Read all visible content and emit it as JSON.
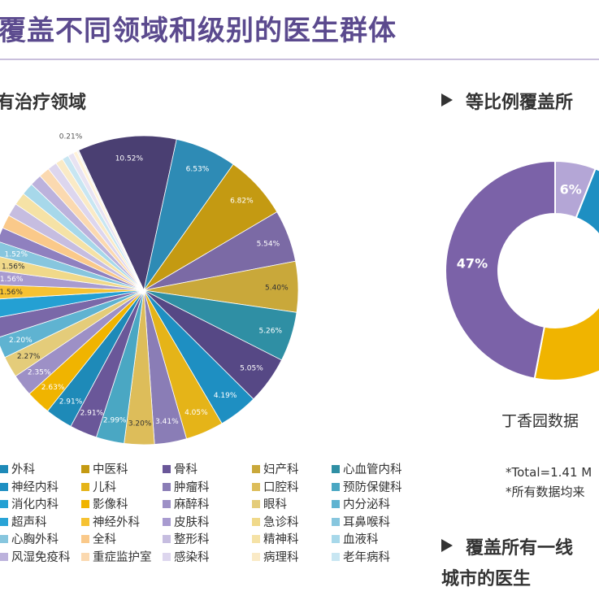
{
  "header": {
    "title": "覆盖不同领域和级别的医生群体"
  },
  "sections": {
    "left": "有治疗领域",
    "right": "等比例覆盖所",
    "bottom_line1": "覆盖所有一线",
    "bottom_line2": "城市的医生"
  },
  "source_text": "丁香园数据",
  "notes": [
    "*Total=1.41 M",
    "*所有数据均来"
  ],
  "colors": {
    "title": "#5b4a8e"
  },
  "chart_data": [
    {
      "type": "pie",
      "title": "",
      "slices": [
        {
          "name": "",
          "value": 10.52,
          "label": "10.52%",
          "color": "#4a3f72"
        },
        {
          "name": "",
          "value": 6.53,
          "label": "6.53%",
          "color": "#2e8bb5"
        },
        {
          "name": "",
          "value": 6.82,
          "label": "6.82%",
          "color": "#c49a12"
        },
        {
          "name": "",
          "value": 5.54,
          "label": "5.54%",
          "color": "#7b6aa5"
        },
        {
          "name": "",
          "value": 5.4,
          "label": "5.40%",
          "color": "#c9a83a"
        },
        {
          "name": "",
          "value": 5.26,
          "label": "5.26%",
          "color": "#2f8fa4"
        },
        {
          "name": "",
          "value": 5.05,
          "label": "5.05%",
          "color": "#564885"
        },
        {
          "name": "",
          "value": 4.19,
          "label": "4.19%",
          "color": "#1e8fc2"
        },
        {
          "name": "",
          "value": 4.05,
          "label": "4.05%",
          "color": "#e5b418"
        },
        {
          "name": "",
          "value": 3.41,
          "label": "3.41%",
          "color": "#8a7db6"
        },
        {
          "name": "",
          "value": 3.2,
          "label": "3.20%",
          "color": "#ddbd5a"
        },
        {
          "name": "",
          "value": 2.99,
          "label": "2.99%",
          "color": "#4aa7c3"
        },
        {
          "name": "",
          "value": 2.91,
          "label": "2.91%",
          "color": "#6a5799"
        },
        {
          "name": "",
          "value": 2.91,
          "label": "2.91%",
          "color": "#1e8ab8"
        },
        {
          "name": "",
          "value": 2.63,
          "label": "2.63%",
          "color": "#f0b400"
        },
        {
          "name": "",
          "value": 2.35,
          "label": "2.35%",
          "color": "#9d90c6"
        },
        {
          "name": "",
          "value": 2.27,
          "label": "2.27%",
          "color": "#e4cc7a"
        },
        {
          "name": "",
          "value": 2.2,
          "label": "2.20%",
          "color": "#5fb3d1"
        },
        {
          "name": "",
          "value": 2.1,
          "label": "",
          "color": "#7a68a8"
        },
        {
          "name": "",
          "value": 2.0,
          "label": "",
          "color": "#24a0d3"
        },
        {
          "name": "",
          "value": 1.56,
          "label": "1.56%",
          "color": "#f6c232"
        },
        {
          "name": "",
          "value": 1.56,
          "label": "1.56%",
          "color": "#a89bd0"
        },
        {
          "name": "",
          "value": 1.56,
          "label": "1.56%",
          "color": "#f0d98a"
        },
        {
          "name": "",
          "value": 1.52,
          "label": "1.52%",
          "color": "#87c6de"
        },
        {
          "name": "",
          "value": 1.5,
          "label": "",
          "color": "#8f80bf"
        },
        {
          "name": "",
          "value": 1.45,
          "label": "",
          "color": "#fac98a"
        },
        {
          "name": "",
          "value": 1.4,
          "label": "",
          "color": "#c6bde0"
        },
        {
          "name": "",
          "value": 1.35,
          "label": "",
          "color": "#f5e2a6"
        },
        {
          "name": "",
          "value": 1.3,
          "label": "",
          "color": "#a7d8ea"
        },
        {
          "name": "",
          "value": 1.25,
          "label": "",
          "color": "#bcb2dc"
        },
        {
          "name": "",
          "value": 1.15,
          "label": "",
          "color": "#fbd9b0"
        },
        {
          "name": "",
          "value": 1.0,
          "label": "",
          "color": "#ddd6ee"
        },
        {
          "name": "",
          "value": 0.8,
          "label": "",
          "color": "#faeac6"
        },
        {
          "name": "",
          "value": 0.7,
          "label": "",
          "color": "#c8e6f2"
        },
        {
          "name": "",
          "value": 0.62,
          "label": "",
          "color": "#e8e3f2"
        },
        {
          "name": "",
          "value": 0.4,
          "label": "",
          "color": "#fff2d8"
        },
        {
          "name": "",
          "value": 0.21,
          "label": "0.21%",
          "color": "#f2f2f2"
        }
      ],
      "legend": [
        {
          "name": "外科",
          "color": "#1e8ab8"
        },
        {
          "name": "中医科",
          "color": "#c49a12"
        },
        {
          "name": "骨科",
          "color": "#6a5799"
        },
        {
          "name": "妇产科",
          "color": "#c9a83a"
        },
        {
          "name": "心血管内科",
          "color": "#2f8fa4"
        },
        {
          "name": "神经内科",
          "color": "#1e8fc2"
        },
        {
          "name": "儿科",
          "color": "#e5b418"
        },
        {
          "name": "肿瘤科",
          "color": "#8a7db6"
        },
        {
          "name": "口腔科",
          "color": "#ddbd5a"
        },
        {
          "name": "预防保健科",
          "color": "#4aa7c3"
        },
        {
          "name": "消化内科",
          "color": "#24a0d3"
        },
        {
          "name": "影像科",
          "color": "#f0b400"
        },
        {
          "name": "麻醉科",
          "color": "#9d90c6"
        },
        {
          "name": "眼科",
          "color": "#e4cc7a"
        },
        {
          "name": "内分泌科",
          "color": "#5fb3d1"
        },
        {
          "name": "超声科",
          "color": "#29a3d6"
        },
        {
          "name": "神经外科",
          "color": "#f6c232"
        },
        {
          "name": "皮肤科",
          "color": "#a89bd0"
        },
        {
          "name": "急诊科",
          "color": "#f0d98a"
        },
        {
          "name": "耳鼻喉科",
          "color": "#87c6de"
        },
        {
          "name": "心胸外科",
          "color": "#87c6de"
        },
        {
          "name": "全科",
          "color": "#fac98a"
        },
        {
          "name": "整形科",
          "color": "#c6bde0"
        },
        {
          "name": "精神科",
          "color": "#f5e2a6"
        },
        {
          "name": "血液科",
          "color": "#a7d8ea"
        },
        {
          "name": "风湿免疫科",
          "color": "#bcb2dc"
        },
        {
          "name": "重症监护室",
          "color": "#fbd9b0"
        },
        {
          "name": "感染科",
          "color": "#ddd6ee"
        },
        {
          "name": "病理科",
          "color": "#faeac6"
        },
        {
          "name": "老年病科",
          "color": "#c8e6f2"
        }
      ]
    },
    {
      "type": "pie",
      "title": "",
      "slices": [
        {
          "name": "",
          "value": 6,
          "label": "6%",
          "color": "#b4a6d6"
        },
        {
          "name": "",
          "value": 10,
          "label": "",
          "color": "#1e8fc2"
        },
        {
          "name": "",
          "value": 37,
          "label": "",
          "color": "#f0b400"
        },
        {
          "name": "",
          "value": 47,
          "label": "47%",
          "color": "#7b62a8"
        }
      ]
    }
  ]
}
